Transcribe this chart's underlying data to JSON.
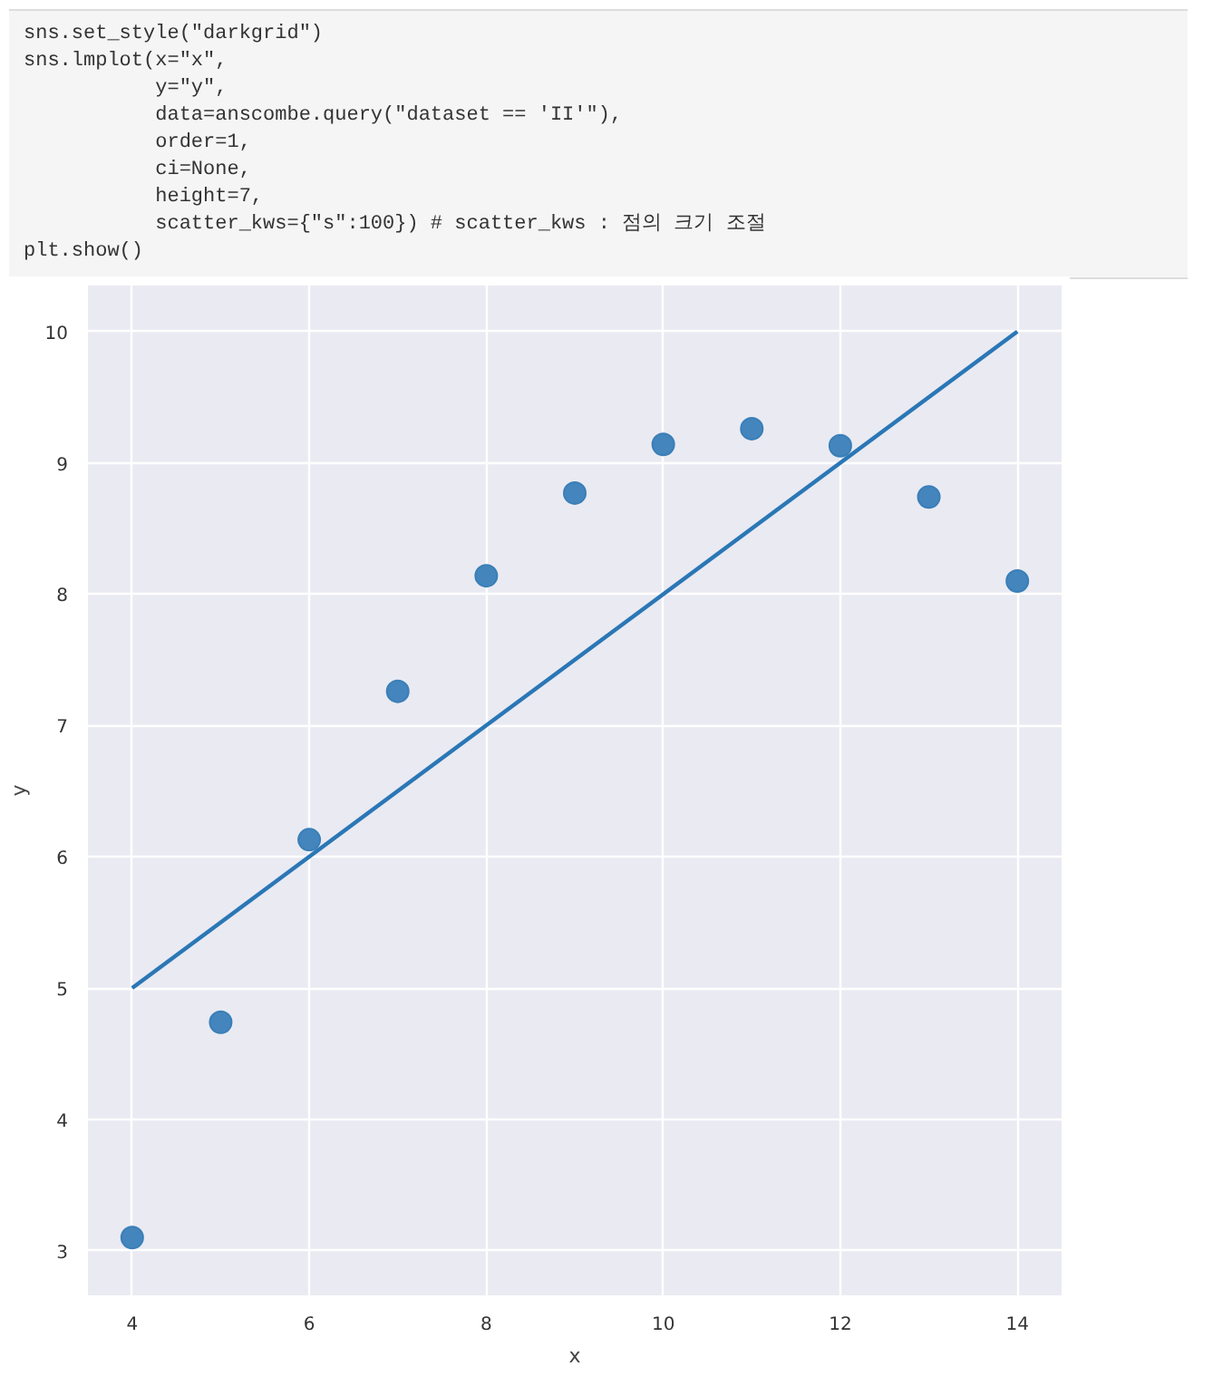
{
  "chart_data": {
    "type": "scatter",
    "xlabel": "x",
    "ylabel": "y",
    "annotations": [
      "sns.set_style(\"darkgrid\")",
      "sns.lmplot(x=\"x\",",
      "           y=\"y\",",
      "           data=anscombe.query(\"dataset == 'II'\"),",
      "           order=1,",
      "           ci=None,",
      "           height=7,",
      "           scatter_kws={\"s\":100}) # scatter_kws : 점의 크기 조절",
      "plt.show()"
    ],
    "series": [
      {
        "color": "#3a7fb8",
        "marker": "circle",
        "x": [
          10,
          8,
          13,
          9,
          11,
          14,
          6,
          4,
          12,
          7,
          5
        ],
        "values": [
          9.14,
          8.14,
          8.74,
          8.77,
          9.26,
          8.1,
          6.13,
          3.1,
          9.13,
          7.26,
          4.74
        ]
      },
      {
        "type": "line",
        "color": "#2a77b6",
        "x": [
          4,
          14
        ],
        "values": [
          5,
          10
        ]
      }
    ],
    "xlim": [
      3.5,
      14.5
    ],
    "ylim": [
      2.66,
      10.35
    ],
    "xticks": [
      4,
      6,
      8,
      10,
      12,
      14
    ],
    "yticks": [
      3,
      4,
      5,
      6,
      7,
      8,
      9,
      10
    ],
    "grid": true
  }
}
